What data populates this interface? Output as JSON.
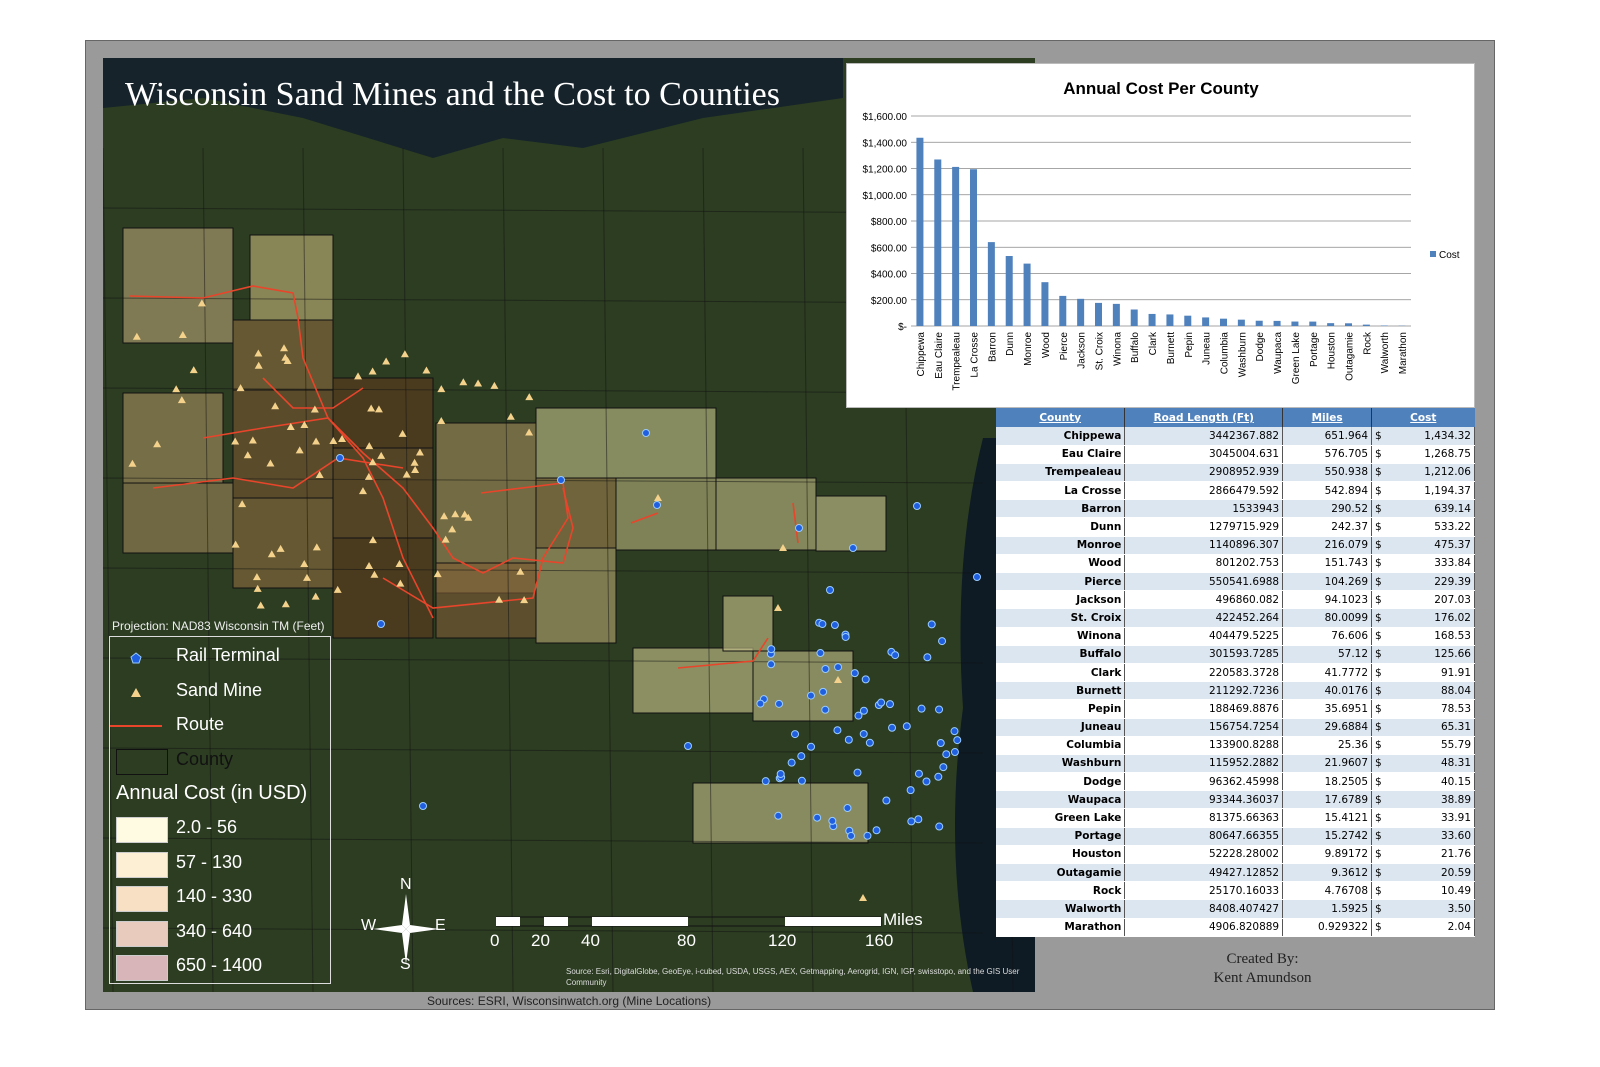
{
  "title": "Wisconsin Sand Mines and the Cost to Counties",
  "projection": "Projection: NAD83 Wisconsin TM (Feet)",
  "legend": {
    "items": [
      {
        "label": "Rail Terminal",
        "icon": "pentagon-marker"
      },
      {
        "label": "Sand Mine",
        "icon": "triangle-marker"
      },
      {
        "label": "Route",
        "icon": "line"
      },
      {
        "label": "County",
        "icon": "polygon"
      }
    ],
    "classes_title": "Annual Cost (in USD)",
    "classes": [
      {
        "label": "2.0 - 56",
        "color": "#fffbe3"
      },
      {
        "label": "57 - 130",
        "color": "#fcefd3"
      },
      {
        "label": "140 - 330",
        "color": "#f7e0c4"
      },
      {
        "label": "340 - 640",
        "color": "#e8cbbd"
      },
      {
        "label": "650 - 1400",
        "color": "#d8b5b8"
      }
    ]
  },
  "colors": {
    "route": "#e8452b",
    "terminal": "#1f5fe0",
    "mine": "#f4d28c",
    "bar": "#4f81bd",
    "header": "#4f81bd"
  },
  "compass": {
    "n": "N",
    "s": "S",
    "e": "E",
    "w": "W"
  },
  "scale": {
    "unit": "Miles",
    "ticks": [
      "0",
      "20",
      "40",
      "80",
      "120",
      "160"
    ]
  },
  "credits": "Source: Esri, DigitalGlobe, GeoEye, i-cubed, USDA, USGS, AEX, Getmapping, Aerogrid, IGN, IGP, swisstopo, and the GIS User Community",
  "sources": "Sources: ESRI, Wisconsinwatch.org (Mine Locations)",
  "created_by": [
    "Created By:",
    "Kent Amundson"
  ],
  "chart_data": {
    "type": "bar",
    "title": "Annual Cost Per County",
    "categories": [
      "Chippewa",
      "Eau Claire",
      "Trempealeau",
      "La Crosse",
      "Barron",
      "Dunn",
      "Monroe",
      "Wood",
      "Pierce",
      "Jackson",
      "St. Croix",
      "Winona",
      "Buffalo",
      "Clark",
      "Burnett",
      "Pepin",
      "Juneau",
      "Columbia",
      "Washburn",
      "Dodge",
      "Waupaca",
      "Green Lake",
      "Portage",
      "Houston",
      "Outagamie",
      "Rock",
      "Walworth",
      "Marathon"
    ],
    "series": [
      {
        "name": "Cost",
        "values": [
          1434.32,
          1268.75,
          1212.06,
          1194.37,
          639.14,
          533.22,
          475.37,
          333.84,
          229.39,
          207.03,
          176.02,
          168.53,
          125.66,
          91.91,
          88.04,
          78.53,
          65.31,
          55.79,
          48.31,
          40.15,
          38.89,
          33.91,
          33.6,
          21.76,
          20.59,
          10.49,
          3.5,
          2.04
        ]
      }
    ],
    "yticks": [
      "$-",
      "$200.00",
      "$400.00",
      "$600.00",
      "$800.00",
      "$1,000.00",
      "$1,200.00",
      "$1,400.00",
      "$1,600.00"
    ],
    "ylim": [
      0,
      1600
    ],
    "grid": true,
    "legend_position": "right"
  },
  "table": {
    "headers": [
      "County",
      "Road Length (Ft)",
      "Miles",
      "Cost"
    ],
    "rows": [
      [
        "Chippewa",
        "3442367.882",
        "651.964",
        "$",
        "1,434.32"
      ],
      [
        "Eau Claire",
        "3045004.631",
        "576.705",
        "$",
        "1,268.75"
      ],
      [
        "Trempealeau",
        "2908952.939",
        "550.938",
        "$",
        "1,212.06"
      ],
      [
        "La Crosse",
        "2866479.592",
        "542.894",
        "$",
        "1,194.37"
      ],
      [
        "Barron",
        "1533943",
        "290.52",
        "$",
        "639.14"
      ],
      [
        "Dunn",
        "1279715.929",
        "242.37",
        "$",
        "533.22"
      ],
      [
        "Monroe",
        "1140896.307",
        "216.079",
        "$",
        "475.37"
      ],
      [
        "Wood",
        "801202.753",
        "151.743",
        "$",
        "333.84"
      ],
      [
        "Pierce",
        "550541.6988",
        "104.269",
        "$",
        "229.39"
      ],
      [
        "Jackson",
        "496860.082",
        "94.1023",
        "$",
        "207.03"
      ],
      [
        "St. Croix",
        "422452.264",
        "80.0099",
        "$",
        "176.02"
      ],
      [
        "Winona",
        "404479.5225",
        "76.606",
        "$",
        "168.53"
      ],
      [
        "Buffalo",
        "301593.7285",
        "57.12",
        "$",
        "125.66"
      ],
      [
        "Clark",
        "220583.3728",
        "41.7772",
        "$",
        "91.91"
      ],
      [
        "Burnett",
        "211292.7236",
        "40.0176",
        "$",
        "88.04"
      ],
      [
        "Pepin",
        "188469.8876",
        "35.6951",
        "$",
        "78.53"
      ],
      [
        "Juneau",
        "156754.7254",
        "29.6884",
        "$",
        "65.31"
      ],
      [
        "Columbia",
        "133900.8288",
        "25.36",
        "$",
        "55.79"
      ],
      [
        "Washburn",
        "115952.2882",
        "21.9607",
        "$",
        "48.31"
      ],
      [
        "Dodge",
        "96362.45998",
        "18.2505",
        "$",
        "40.15"
      ],
      [
        "Waupaca",
        "93344.36037",
        "17.6789",
        "$",
        "38.89"
      ],
      [
        "Green Lake",
        "81375.66363",
        "15.4121",
        "$",
        "33.91"
      ],
      [
        "Portage",
        "80647.66355",
        "15.2742",
        "$",
        "33.60"
      ],
      [
        "Houston",
        "52228.28002",
        "9.89172",
        "$",
        "21.76"
      ],
      [
        "Outagamie",
        "49427.12852",
        "9.3612",
        "$",
        "20.59"
      ],
      [
        "Rock",
        "25170.16033",
        "4.76708",
        "$",
        "10.49"
      ],
      [
        "Walworth",
        "8408.407427",
        "1.5925",
        "$",
        "3.50"
      ],
      [
        "Marathon",
        "4906.820889",
        "0.929322",
        "$",
        "2.04"
      ]
    ]
  }
}
